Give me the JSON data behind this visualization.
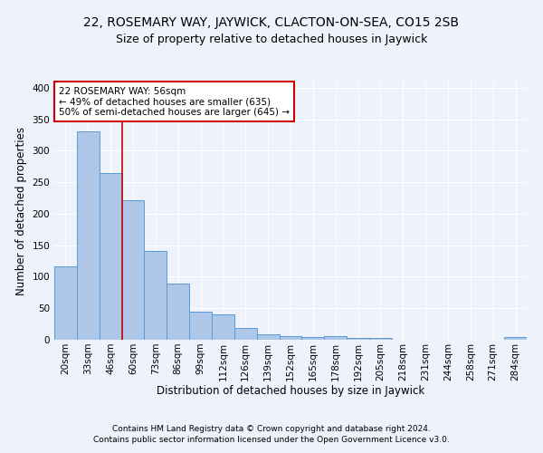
{
  "title": "22, ROSEMARY WAY, JAYWICK, CLACTON-ON-SEA, CO15 2SB",
  "subtitle": "Size of property relative to detached houses in Jaywick",
  "xlabel": "Distribution of detached houses by size in Jaywick",
  "ylabel": "Number of detached properties",
  "categories": [
    "20sqm",
    "33sqm",
    "46sqm",
    "60sqm",
    "73sqm",
    "86sqm",
    "99sqm",
    "112sqm",
    "126sqm",
    "139sqm",
    "152sqm",
    "165sqm",
    "178sqm",
    "192sqm",
    "205sqm",
    "218sqm",
    "231sqm",
    "244sqm",
    "258sqm",
    "271sqm",
    "284sqm"
  ],
  "values": [
    117,
    331,
    265,
    222,
    141,
    89,
    45,
    41,
    18,
    9,
    6,
    5,
    6,
    3,
    3,
    0,
    0,
    0,
    0,
    0,
    5
  ],
  "bar_color": "#aec6e8",
  "bar_edgecolor": "#5b9bd5",
  "vline_x": 2.5,
  "vline_color": "#cc0000",
  "annotation_text": "22 ROSEMARY WAY: 56sqm\n← 49% of detached houses are smaller (635)\n50% of semi-detached houses are larger (645) →",
  "annotation_box_color": "#ffffff",
  "annotation_box_edgecolor": "#cc0000",
  "footer_line1": "Contains HM Land Registry data © Crown copyright and database right 2024.",
  "footer_line2": "Contains public sector information licensed under the Open Government Licence v3.0.",
  "background_color": "#eef2fb",
  "grid_color": "#ffffff",
  "title_fontsize": 10,
  "subtitle_fontsize": 9,
  "axis_label_fontsize": 8.5,
  "tick_fontsize": 7.5,
  "footer_fontsize": 6.5,
  "ylim": [
    0,
    410
  ],
  "annotation_fontsize": 7.5
}
